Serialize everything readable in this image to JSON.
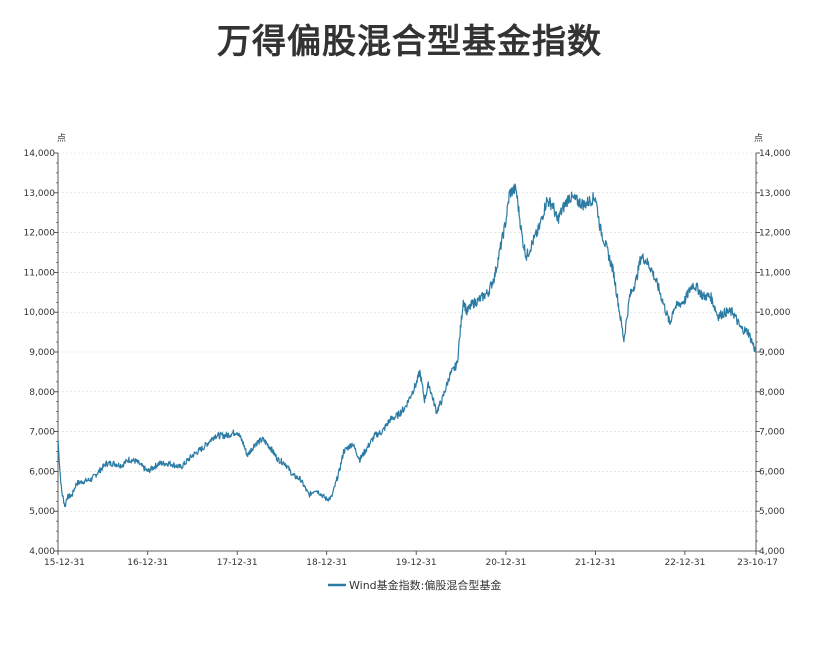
{
  "chart_data": {
    "type": "line",
    "title": "万得偏股混合型基金指数",
    "y_unit_left": "点",
    "y_unit_right": "点",
    "ylim": [
      4000,
      14000
    ],
    "y_ticks": [
      4000,
      5000,
      6000,
      7000,
      8000,
      9000,
      10000,
      11000,
      12000,
      13000,
      14000
    ],
    "y_tick_labels": [
      "4,000",
      "5,000",
      "6,000",
      "7,000",
      "8,000",
      "9,000",
      "10,000",
      "11,000",
      "12,000",
      "13,000",
      "14,000"
    ],
    "x_tick_labels": [
      "15-12-31",
      "16-12-31",
      "17-12-31",
      "18-12-31",
      "19-12-31",
      "20-12-31",
      "21-12-31",
      "22-12-31",
      "23-10-17"
    ],
    "x_tick_dates": [
      "2015-12-31",
      "2016-12-31",
      "2017-12-31",
      "2018-12-31",
      "2019-12-31",
      "2020-12-31",
      "2021-12-31",
      "2022-12-31",
      "2023-10-17"
    ],
    "grid": true,
    "legend_position": "bottom-center",
    "colors": {
      "series": "#2b7ba3",
      "grid": "#d9d9d9",
      "axis": "#333333"
    },
    "series": [
      {
        "name": "Wind基金指数:偏股混合型基金",
        "x": [
          "2015-12-31",
          "2016-01-08",
          "2016-01-15",
          "2016-01-22",
          "2016-01-29",
          "2016-02-05",
          "2016-02-26",
          "2016-03-15",
          "2016-04-15",
          "2016-05-15",
          "2016-06-15",
          "2016-07-15",
          "2016-08-15",
          "2016-09-15",
          "2016-10-15",
          "2016-11-15",
          "2016-12-31",
          "2017-02-15",
          "2017-04-01",
          "2017-05-15",
          "2017-07-01",
          "2017-08-15",
          "2017-10-01",
          "2017-11-15",
          "2017-12-31",
          "2018-01-25",
          "2018-02-10",
          "2018-03-15",
          "2018-04-15",
          "2018-05-15",
          "2018-06-15",
          "2018-07-15",
          "2018-08-15",
          "2018-09-15",
          "2018-10-20",
          "2018-11-15",
          "2018-12-31",
          "2019-01-20",
          "2019-02-20",
          "2019-03-10",
          "2019-04-15",
          "2019-05-15",
          "2019-06-15",
          "2019-07-15",
          "2019-08-15",
          "2019-09-15",
          "2019-10-15",
          "2019-11-15",
          "2019-12-31",
          "2020-01-15",
          "2020-02-03",
          "2020-02-20",
          "2020-03-23",
          "2020-04-15",
          "2020-05-15",
          "2020-06-15",
          "2020-07-10",
          "2020-07-25",
          "2020-08-15",
          "2020-09-10",
          "2020-09-30",
          "2020-10-20",
          "2020-11-15",
          "2020-12-31",
          "2021-01-15",
          "2021-02-10",
          "2021-03-09",
          "2021-03-25",
          "2021-04-15",
          "2021-05-15",
          "2021-06-15",
          "2021-07-10",
          "2021-07-28",
          "2021-08-20",
          "2021-09-15",
          "2021-10-15",
          "2021-11-15",
          "2021-12-31",
          "2022-01-20",
          "2022-02-15",
          "2022-03-15",
          "2022-04-26",
          "2022-05-20",
          "2022-06-15",
          "2022-07-05",
          "2022-07-25",
          "2022-08-15",
          "2022-09-15",
          "2022-10-31",
          "2022-11-15",
          "2022-12-31",
          "2023-01-31",
          "2023-02-20",
          "2023-03-15",
          "2023-04-15",
          "2023-05-15",
          "2023-06-15",
          "2023-07-15",
          "2023-08-15",
          "2023-09-15",
          "2023-10-17"
        ],
        "y": [
          6800,
          6000,
          5500,
          5300,
          5100,
          5350,
          5400,
          5700,
          5750,
          5800,
          6000,
          6200,
          6200,
          6150,
          6300,
          6250,
          6000,
          6200,
          6200,
          6100,
          6400,
          6600,
          6900,
          6900,
          7000,
          6700,
          6400,
          6700,
          6800,
          6600,
          6300,
          6200,
          5900,
          5800,
          5400,
          5550,
          5300,
          5350,
          6000,
          6500,
          6700,
          6300,
          6600,
          6900,
          7000,
          7300,
          7400,
          7600,
          8200,
          8500,
          7800,
          8200,
          7500,
          7800,
          8400,
          8700,
          10300,
          10000,
          10200,
          10300,
          10400,
          10500,
          10900,
          12300,
          13000,
          13100,
          11800,
          11400,
          11700,
          12100,
          12800,
          12700,
          12300,
          12600,
          12900,
          12800,
          12700,
          12900,
          12100,
          11600,
          11000,
          9300,
          10400,
          10800,
          11400,
          11300,
          11100,
          10600,
          9700,
          10100,
          10300,
          10700,
          10600,
          10400,
          10400,
          9900,
          10000,
          10000,
          9600,
          9500,
          9000
        ]
      }
    ]
  }
}
